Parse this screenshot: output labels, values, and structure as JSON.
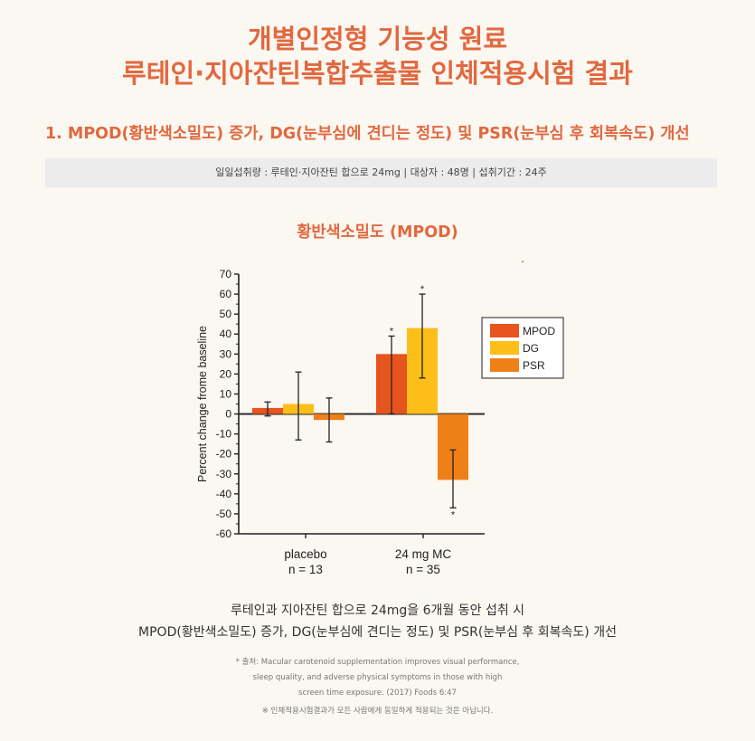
{
  "page": {
    "title_line1": "개별인정형 기능성 원료",
    "title_line2": "루테인·지아잔틴복합추출물 인체적용시험 결과",
    "subheading": "1. MPOD(황반색소밀도) 증가, DG(눈부심에 견디는 정도) 및 PSR(눈부심 후 회복속도) 개선",
    "info": "일일섭취량 : 루테인·지아잔틴 합으로 24mg  |  대상자 : 48명  |  섭취기간 : 24주",
    "chart_heading": "황반색소밀도 (MPOD)",
    "caption_line1": "루테인과 지아잔틴 합으로 24mg을 6개월 동안 섭취 시",
    "caption_line2": "MPOD(황반색소밀도) 증가, DG(눈부심에 견디는 정도) 및 PSR(눈부심 후 회복속도) 개선",
    "source_line1": "* 출처: Macular carotenoid supplementation improves visual performance,",
    "source_line2": "sleep quality, and adverse physical symptoms in those with high",
    "source_line3": "screen time exposure. (2017) Foods 6:47",
    "note": "※ 인체적용시험결과가 모든 사람에게 동일하게 적용되는 것은 아닙니다."
  },
  "colors": {
    "accent": "#e2683f",
    "mpod": "#e8541e",
    "dg": "#fdbe1a",
    "psr": "#ef8018"
  },
  "chart_data": {
    "type": "bar",
    "title": "",
    "ylabel": "Percent change frome baseline",
    "xlabel": "",
    "ylim": [
      -60,
      70
    ],
    "yticks": [
      70,
      60,
      50,
      40,
      30,
      20,
      10,
      0,
      -10,
      -20,
      -30,
      -40,
      -50,
      -60
    ],
    "categories": [
      "placebo",
      "24 mg MC"
    ],
    "category_n": [
      "n = 13",
      "n = 35"
    ],
    "legend_position": "right",
    "series": [
      {
        "name": "MPOD",
        "values": [
          3,
          30
        ],
        "err_low": [
          -1,
          0
        ],
        "err_high": [
          6,
          39
        ],
        "significant": [
          false,
          true
        ]
      },
      {
        "name": "DG",
        "values": [
          5,
          43
        ],
        "err_low": [
          -13,
          18
        ],
        "err_high": [
          21,
          60
        ],
        "significant": [
          false,
          true
        ]
      },
      {
        "name": "PSR",
        "values": [
          -3,
          -33
        ],
        "err_low": [
          -14,
          -47
        ],
        "err_high": [
          8,
          -18
        ],
        "significant": [
          false,
          true
        ]
      }
    ],
    "significance_marker": "*"
  }
}
